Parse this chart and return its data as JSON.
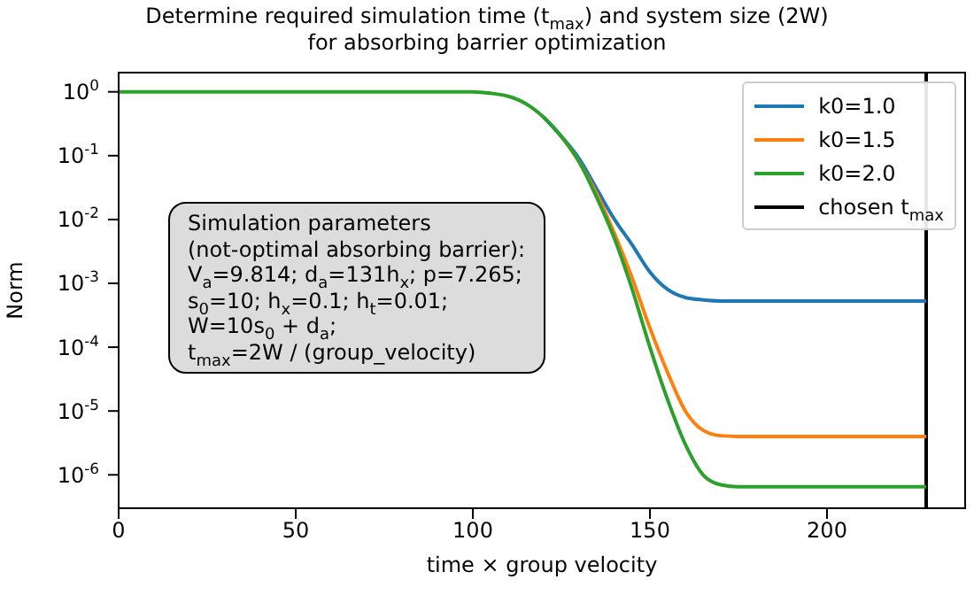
{
  "chart_data": {
    "type": "line",
    "title": "Determine required simulation time (t$_{max}$) and system size (2W)\nfor absorbing barrier optimization",
    "xlabel": "time × group velocity",
    "ylabel": "Norm",
    "x": [
      0,
      50,
      100,
      105,
      110,
      115,
      120,
      125,
      130,
      135,
      140,
      145,
      150,
      155,
      160,
      165,
      170,
      175,
      180,
      200,
      228
    ],
    "series": [
      {
        "name": "k0=1.0",
        "color": "#1f77b4",
        "values": [
          null,
          null,
          null,
          null,
          null,
          null,
          0.4,
          0.2,
          0.09,
          0.03,
          0.01,
          0.004,
          0.0015,
          0.0008,
          0.0006,
          0.00055,
          0.00053,
          0.00053,
          0.00053,
          0.00053,
          0.00053
        ]
      },
      {
        "name": "k0=1.5",
        "color": "#ff7f0e",
        "values": [
          null,
          null,
          null,
          null,
          null,
          null,
          null,
          0.2,
          0.08,
          0.025,
          0.006,
          0.0012,
          0.0002,
          4e-05,
          1e-05,
          5e-06,
          4.1e-06,
          4e-06,
          4e-06,
          4e-06,
          4e-06
        ]
      },
      {
        "name": "k0=2.0",
        "color": "#2ca02c",
        "values": [
          1,
          1,
          1,
          0.95,
          0.85,
          0.65,
          0.4,
          0.2,
          0.08,
          0.022,
          0.005,
          0.0008,
          0.0001,
          1.5e-05,
          3e-06,
          1e-06,
          7e-07,
          6.5e-07,
          6.5e-07,
          6.5e-07,
          6.5e-07
        ]
      }
    ],
    "ref_lines": [
      {
        "axis": "x",
        "value": 228,
        "label": "chosen t$_{max}$",
        "color": "#000000"
      }
    ],
    "annotations": [
      "Simulation parameters\n(not-optimal absorbing barrier):\nV$_{a}$=9.814; d$_{a}$=131h$_{x}$; p=7.265;\ns$_{0}$=10; h$_{x}$=0.1; h$_{t}$=0.01;\nW=10s$_{0}$ + d$_{a}$;\nt$_{max}$=2W / (group_velocity)"
    ],
    "xlim": [
      0,
      239
    ],
    "xticks": [
      0,
      50,
      100,
      150,
      200
    ],
    "ylim": [
      3e-07,
      2
    ],
    "log": true,
    "yticks": [
      {
        "value": 1,
        "label": "10$^{0}$"
      },
      {
        "value": 0.1,
        "label": "10$^{-1}$"
      },
      {
        "value": 0.01,
        "label": "10$^{-2}$"
      },
      {
        "value": 0.001,
        "label": "10$^{-3}$"
      },
      {
        "value": 0.0001,
        "label": "10$^{-4}$"
      },
      {
        "value": 1e-05,
        "label": "10$^{-5}$"
      },
      {
        "value": 1e-06,
        "label": "10$^{-6}$"
      }
    ],
    "grid": false,
    "legend": "top right",
    "marker": "none",
    "line_style": "solid"
  }
}
